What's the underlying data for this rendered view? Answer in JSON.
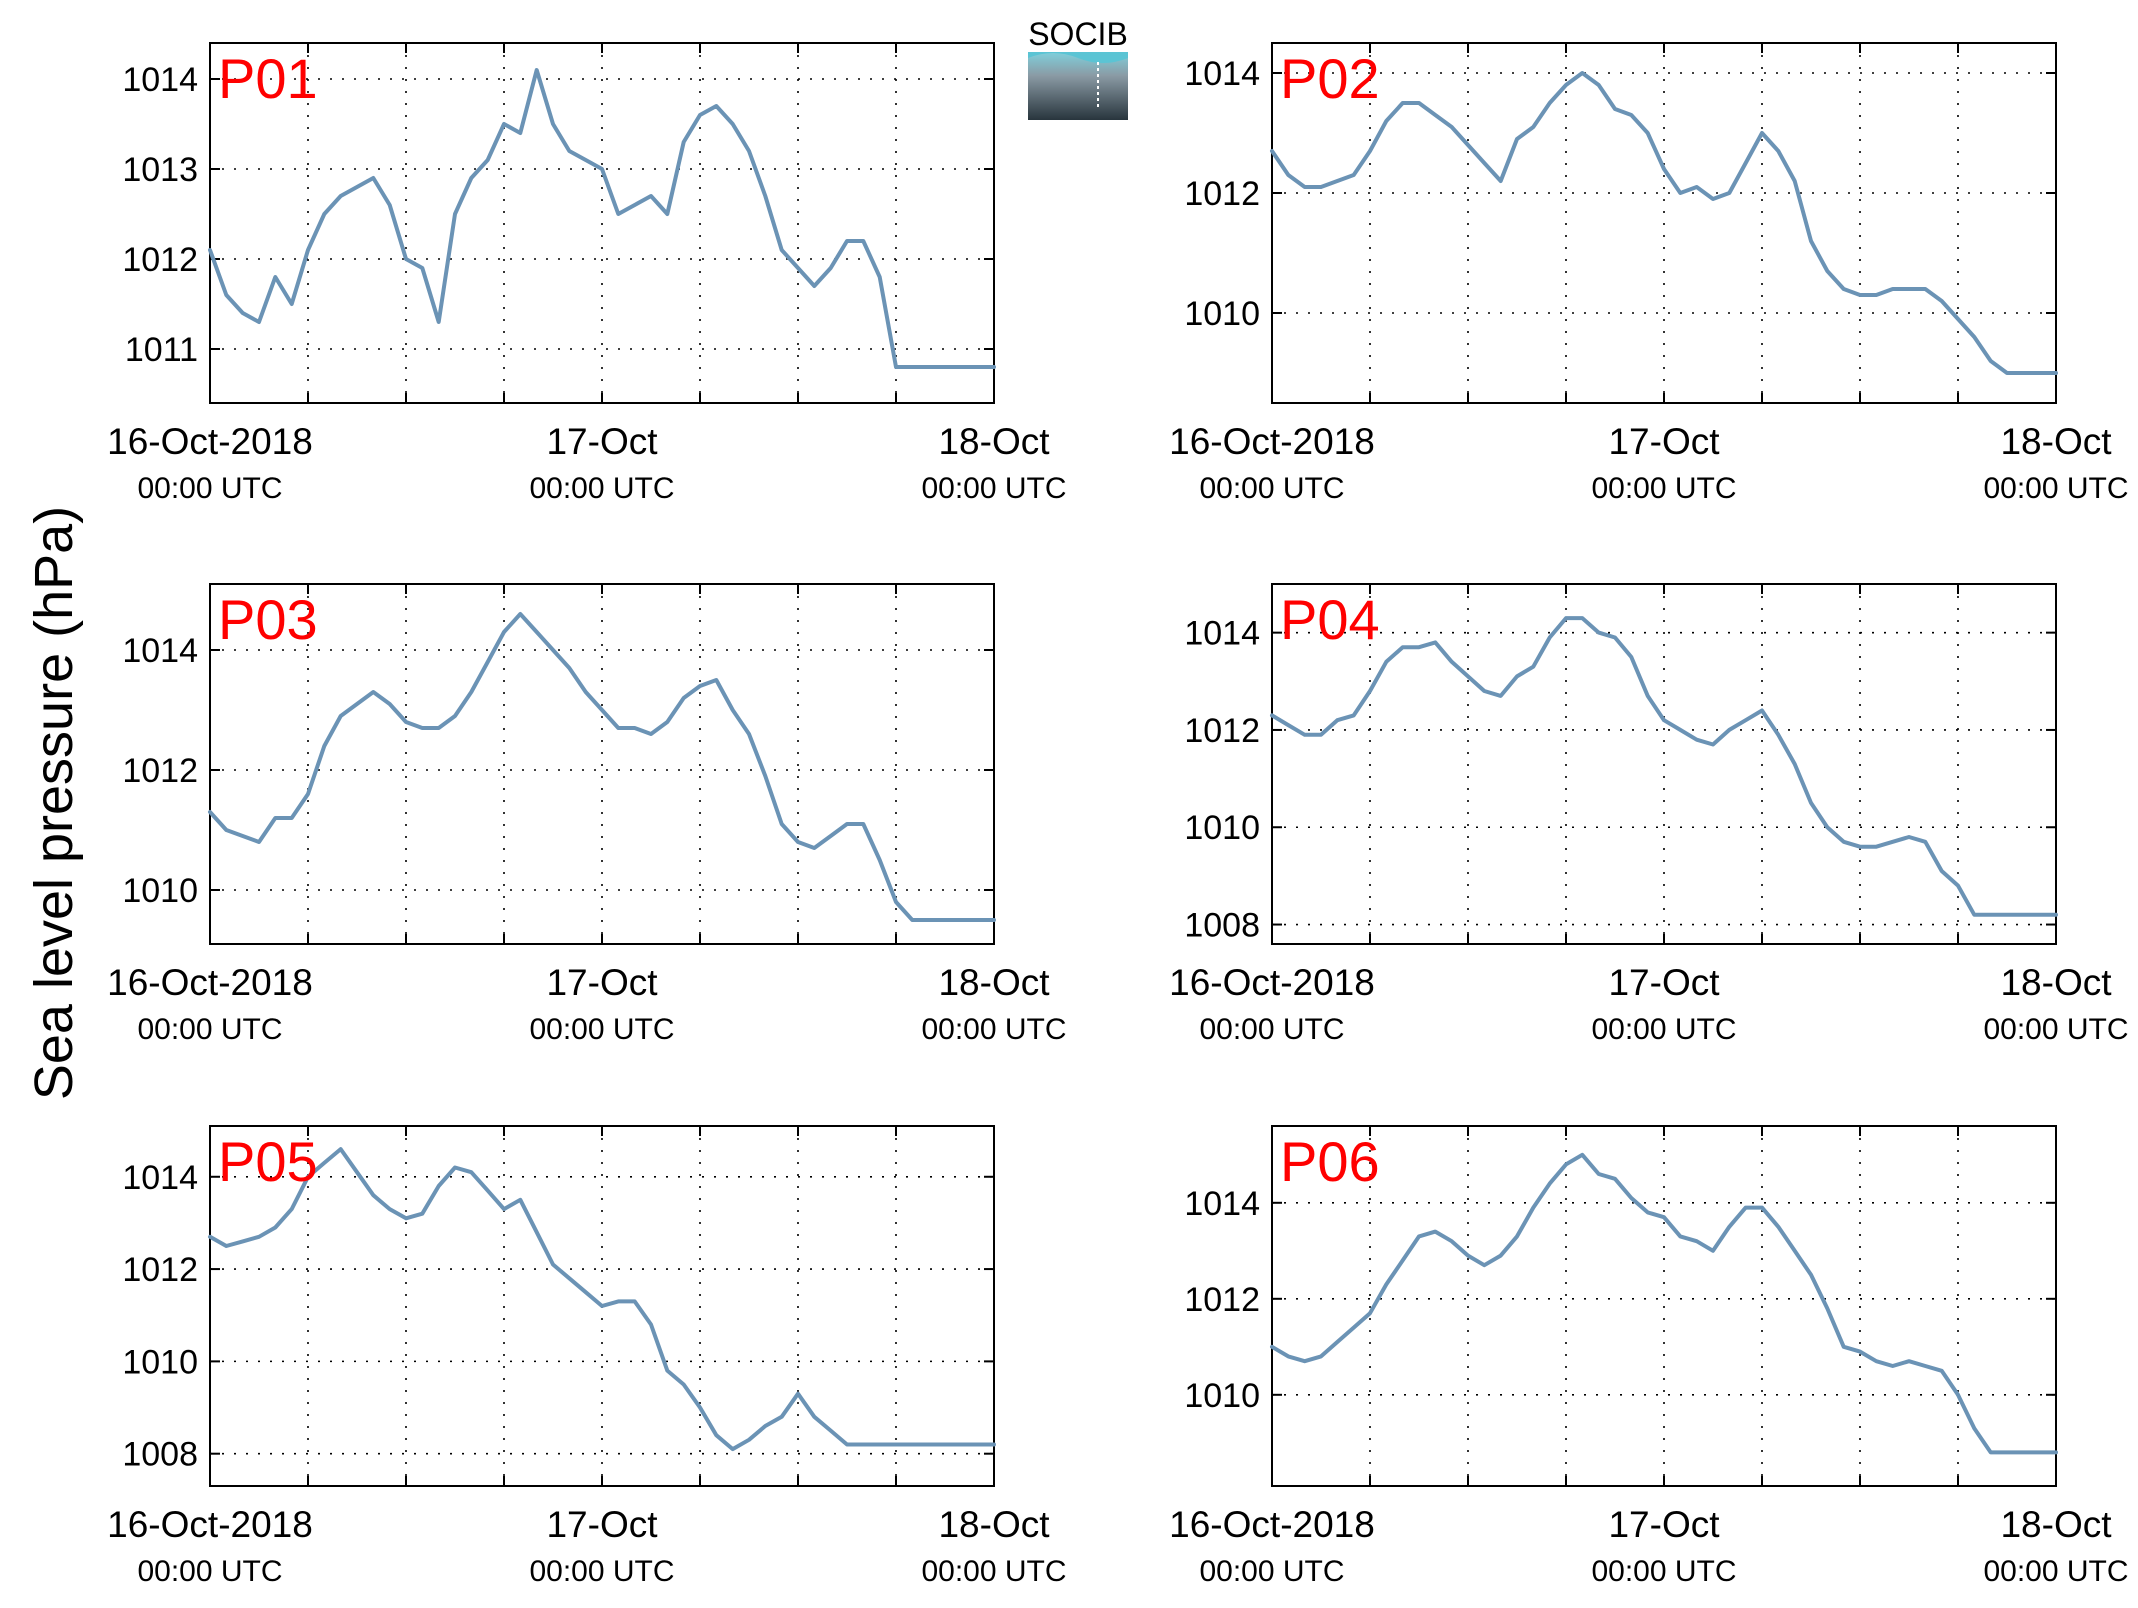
{
  "ylabel": "Sea level pressure (hPa)",
  "logo": {
    "text": "SOCIB",
    "text_color": "#5bc4d4"
  },
  "colors": {
    "line": "#6b93b5",
    "panel_label": "#ff0000",
    "grid": "#000000"
  },
  "x_ticks": [
    {
      "value": "2018-10-16T00:00Z",
      "line1": "16-Oct-2018",
      "line2": "00:00 UTC"
    },
    {
      "value": "2018-10-17T00:00Z",
      "line1": "17-Oct",
      "line2": "00:00 UTC"
    },
    {
      "value": "2018-10-18T00:00Z",
      "line1": "18-Oct",
      "line2": "00:00 UTC"
    }
  ],
  "chart_data": [
    {
      "type": "line",
      "label": "P01",
      "xlim": [
        "2018-10-16T00:00Z",
        "2018-10-18T00:00Z"
      ],
      "ylim": [
        1010.4,
        1014.4
      ],
      "yticks": [
        1011,
        1012,
        1013,
        1014
      ],
      "grid": "dotted",
      "x": [
        "2018-10-16T00:00Z",
        "2018-10-16T01:00Z",
        "2018-10-16T02:00Z",
        "2018-10-16T03:00Z",
        "2018-10-16T04:00Z",
        "2018-10-16T05:00Z",
        "2018-10-16T06:00Z",
        "2018-10-16T07:00Z",
        "2018-10-16T08:00Z",
        "2018-10-16T09:00Z",
        "2018-10-16T10:00Z",
        "2018-10-16T11:00Z",
        "2018-10-16T12:00Z",
        "2018-10-16T13:00Z",
        "2018-10-16T14:00Z",
        "2018-10-16T15:00Z",
        "2018-10-16T16:00Z",
        "2018-10-16T17:00Z",
        "2018-10-16T18:00Z",
        "2018-10-16T19:00Z",
        "2018-10-16T20:00Z",
        "2018-10-16T21:00Z",
        "2018-10-16T22:00Z",
        "2018-10-16T23:00Z",
        "2018-10-17T00:00Z",
        "2018-10-17T01:00Z",
        "2018-10-17T02:00Z",
        "2018-10-17T03:00Z",
        "2018-10-17T04:00Z",
        "2018-10-17T05:00Z",
        "2018-10-17T06:00Z",
        "2018-10-17T07:00Z",
        "2018-10-17T08:00Z",
        "2018-10-17T09:00Z",
        "2018-10-17T10:00Z",
        "2018-10-17T11:00Z",
        "2018-10-17T12:00Z",
        "2018-10-17T13:00Z",
        "2018-10-17T14:00Z",
        "2018-10-17T15:00Z",
        "2018-10-17T16:00Z",
        "2018-10-17T17:00Z",
        "2018-10-17T18:00Z",
        "2018-10-17T19:00Z",
        "2018-10-17T20:00Z",
        "2018-10-17T21:00Z",
        "2018-10-17T22:00Z",
        "2018-10-17T23:00Z",
        "2018-10-18T00:00Z"
      ],
      "y": [
        1012.1,
        1011.6,
        1011.4,
        1011.3,
        1011.8,
        1011.5,
        1012.1,
        1012.5,
        1012.7,
        1012.8,
        1012.9,
        1012.6,
        1012.0,
        1011.9,
        1011.3,
        1012.5,
        1012.9,
        1013.1,
        1013.5,
        1013.4,
        1014.1,
        1013.5,
        1013.2,
        1013.1,
        1013.0,
        1012.5,
        1012.6,
        1012.7,
        1012.5,
        1013.3,
        1013.6,
        1013.7,
        1013.5,
        1013.2,
        1012.7,
        1012.1,
        1011.9,
        1011.7,
        1011.9,
        1012.2,
        1012.2,
        1011.8,
        1010.8,
        1010.8,
        1010.8,
        1010.8,
        1010.8,
        1010.8,
        1010.8
      ]
    },
    {
      "type": "line",
      "label": "P02",
      "xlim": [
        "2018-10-16T00:00Z",
        "2018-10-18T00:00Z"
      ],
      "ylim": [
        1008.5,
        1014.5
      ],
      "yticks": [
        1010,
        1012,
        1014
      ],
      "grid": "dotted",
      "x": [
        "2018-10-16T00:00Z",
        "2018-10-16T01:00Z",
        "2018-10-16T02:00Z",
        "2018-10-16T03:00Z",
        "2018-10-16T04:00Z",
        "2018-10-16T05:00Z",
        "2018-10-16T06:00Z",
        "2018-10-16T07:00Z",
        "2018-10-16T08:00Z",
        "2018-10-16T09:00Z",
        "2018-10-16T10:00Z",
        "2018-10-16T11:00Z",
        "2018-10-16T12:00Z",
        "2018-10-16T13:00Z",
        "2018-10-16T14:00Z",
        "2018-10-16T15:00Z",
        "2018-10-16T16:00Z",
        "2018-10-16T17:00Z",
        "2018-10-16T18:00Z",
        "2018-10-16T19:00Z",
        "2018-10-16T20:00Z",
        "2018-10-16T21:00Z",
        "2018-10-16T22:00Z",
        "2018-10-16T23:00Z",
        "2018-10-17T00:00Z",
        "2018-10-17T01:00Z",
        "2018-10-17T02:00Z",
        "2018-10-17T03:00Z",
        "2018-10-17T04:00Z",
        "2018-10-17T05:00Z",
        "2018-10-17T06:00Z",
        "2018-10-17T07:00Z",
        "2018-10-17T08:00Z",
        "2018-10-17T09:00Z",
        "2018-10-17T10:00Z",
        "2018-10-17T11:00Z",
        "2018-10-17T12:00Z",
        "2018-10-17T13:00Z",
        "2018-10-17T14:00Z",
        "2018-10-17T15:00Z",
        "2018-10-17T16:00Z",
        "2018-10-17T17:00Z",
        "2018-10-17T18:00Z",
        "2018-10-17T19:00Z",
        "2018-10-17T20:00Z",
        "2018-10-17T21:00Z",
        "2018-10-17T22:00Z",
        "2018-10-17T23:00Z",
        "2018-10-18T00:00Z"
      ],
      "y": [
        1012.7,
        1012.3,
        1012.1,
        1012.1,
        1012.2,
        1012.3,
        1012.7,
        1013.2,
        1013.5,
        1013.5,
        1013.3,
        1013.1,
        1012.8,
        1012.5,
        1012.2,
        1012.9,
        1013.1,
        1013.5,
        1013.8,
        1014.0,
        1013.8,
        1013.4,
        1013.3,
        1013.0,
        1012.4,
        1012.0,
        1012.1,
        1011.9,
        1012.0,
        1012.5,
        1013.0,
        1012.7,
        1012.2,
        1011.2,
        1010.7,
        1010.4,
        1010.3,
        1010.3,
        1010.4,
        1010.4,
        1010.4,
        1010.2,
        1009.9,
        1009.6,
        1009.2,
        1009.0,
        1009.0,
        1009.0,
        1009.0
      ]
    },
    {
      "type": "line",
      "label": "P03",
      "xlim": [
        "2018-10-16T00:00Z",
        "2018-10-18T00:00Z"
      ],
      "ylim": [
        1009.1,
        1015.1
      ],
      "yticks": [
        1010,
        1012,
        1014
      ],
      "grid": "dotted",
      "x": [
        "2018-10-16T00:00Z",
        "2018-10-16T01:00Z",
        "2018-10-16T02:00Z",
        "2018-10-16T03:00Z",
        "2018-10-16T04:00Z",
        "2018-10-16T05:00Z",
        "2018-10-16T06:00Z",
        "2018-10-16T07:00Z",
        "2018-10-16T08:00Z",
        "2018-10-16T09:00Z",
        "2018-10-16T10:00Z",
        "2018-10-16T11:00Z",
        "2018-10-16T12:00Z",
        "2018-10-16T13:00Z",
        "2018-10-16T14:00Z",
        "2018-10-16T15:00Z",
        "2018-10-16T16:00Z",
        "2018-10-16T17:00Z",
        "2018-10-16T18:00Z",
        "2018-10-16T19:00Z",
        "2018-10-16T20:00Z",
        "2018-10-16T21:00Z",
        "2018-10-16T22:00Z",
        "2018-10-16T23:00Z",
        "2018-10-17T00:00Z",
        "2018-10-17T01:00Z",
        "2018-10-17T02:00Z",
        "2018-10-17T03:00Z",
        "2018-10-17T04:00Z",
        "2018-10-17T05:00Z",
        "2018-10-17T06:00Z",
        "2018-10-17T07:00Z",
        "2018-10-17T08:00Z",
        "2018-10-17T09:00Z",
        "2018-10-17T10:00Z",
        "2018-10-17T11:00Z",
        "2018-10-17T12:00Z",
        "2018-10-17T13:00Z",
        "2018-10-17T14:00Z",
        "2018-10-17T15:00Z",
        "2018-10-17T16:00Z",
        "2018-10-17T17:00Z",
        "2018-10-17T18:00Z",
        "2018-10-17T19:00Z",
        "2018-10-17T20:00Z",
        "2018-10-17T21:00Z",
        "2018-10-17T22:00Z",
        "2018-10-17T23:00Z",
        "2018-10-18T00:00Z"
      ],
      "y": [
        1011.3,
        1011.0,
        1010.9,
        1010.8,
        1011.2,
        1011.2,
        1011.6,
        1012.4,
        1012.9,
        1013.1,
        1013.3,
        1013.1,
        1012.8,
        1012.7,
        1012.7,
        1012.9,
        1013.3,
        1013.8,
        1014.3,
        1014.6,
        1014.3,
        1014.0,
        1013.7,
        1013.3,
        1013.0,
        1012.7,
        1012.7,
        1012.6,
        1012.8,
        1013.2,
        1013.4,
        1013.5,
        1013.0,
        1012.6,
        1011.9,
        1011.1,
        1010.8,
        1010.7,
        1010.9,
        1011.1,
        1011.1,
        1010.5,
        1009.8,
        1009.5,
        1009.5,
        1009.5,
        1009.5,
        1009.5,
        1009.5
      ]
    },
    {
      "type": "line",
      "label": "P04",
      "xlim": [
        "2018-10-16T00:00Z",
        "2018-10-18T00:00Z"
      ],
      "ylim": [
        1007.6,
        1015.0
      ],
      "yticks": [
        1008,
        1010,
        1012,
        1014
      ],
      "grid": "dotted",
      "x": [
        "2018-10-16T00:00Z",
        "2018-10-16T01:00Z",
        "2018-10-16T02:00Z",
        "2018-10-16T03:00Z",
        "2018-10-16T04:00Z",
        "2018-10-16T05:00Z",
        "2018-10-16T06:00Z",
        "2018-10-16T07:00Z",
        "2018-10-16T08:00Z",
        "2018-10-16T09:00Z",
        "2018-10-16T10:00Z",
        "2018-10-16T11:00Z",
        "2018-10-16T12:00Z",
        "2018-10-16T13:00Z",
        "2018-10-16T14:00Z",
        "2018-10-16T15:00Z",
        "2018-10-16T16:00Z",
        "2018-10-16T17:00Z",
        "2018-10-16T18:00Z",
        "2018-10-16T19:00Z",
        "2018-10-16T20:00Z",
        "2018-10-16T21:00Z",
        "2018-10-16T22:00Z",
        "2018-10-16T23:00Z",
        "2018-10-17T00:00Z",
        "2018-10-17T01:00Z",
        "2018-10-17T02:00Z",
        "2018-10-17T03:00Z",
        "2018-10-17T04:00Z",
        "2018-10-17T05:00Z",
        "2018-10-17T06:00Z",
        "2018-10-17T07:00Z",
        "2018-10-17T08:00Z",
        "2018-10-17T09:00Z",
        "2018-10-17T10:00Z",
        "2018-10-17T11:00Z",
        "2018-10-17T12:00Z",
        "2018-10-17T13:00Z",
        "2018-10-17T14:00Z",
        "2018-10-17T15:00Z",
        "2018-10-17T16:00Z",
        "2018-10-17T17:00Z",
        "2018-10-17T18:00Z",
        "2018-10-17T19:00Z",
        "2018-10-17T20:00Z",
        "2018-10-17T21:00Z",
        "2018-10-17T22:00Z",
        "2018-10-17T23:00Z",
        "2018-10-18T00:00Z"
      ],
      "y": [
        1012.3,
        1012.1,
        1011.9,
        1011.9,
        1012.2,
        1012.3,
        1012.8,
        1013.4,
        1013.7,
        1013.7,
        1013.8,
        1013.4,
        1013.1,
        1012.8,
        1012.7,
        1013.1,
        1013.3,
        1013.9,
        1014.3,
        1014.3,
        1014.0,
        1013.9,
        1013.5,
        1012.7,
        1012.2,
        1012.0,
        1011.8,
        1011.7,
        1012.0,
        1012.2,
        1012.4,
        1011.9,
        1011.3,
        1010.5,
        1010.0,
        1009.7,
        1009.6,
        1009.6,
        1009.7,
        1009.8,
        1009.7,
        1009.1,
        1008.8,
        1008.2,
        1008.2,
        1008.2,
        1008.2,
        1008.2,
        1008.2
      ]
    },
    {
      "type": "line",
      "label": "P05",
      "xlim": [
        "2018-10-16T00:00Z",
        "2018-10-18T00:00Z"
      ],
      "ylim": [
        1007.3,
        1015.1
      ],
      "yticks": [
        1008,
        1010,
        1012,
        1014
      ],
      "grid": "dotted",
      "x": [
        "2018-10-16T00:00Z",
        "2018-10-16T01:00Z",
        "2018-10-16T02:00Z",
        "2018-10-16T03:00Z",
        "2018-10-16T04:00Z",
        "2018-10-16T05:00Z",
        "2018-10-16T06:00Z",
        "2018-10-16T07:00Z",
        "2018-10-16T08:00Z",
        "2018-10-16T09:00Z",
        "2018-10-16T10:00Z",
        "2018-10-16T11:00Z",
        "2018-10-16T12:00Z",
        "2018-10-16T13:00Z",
        "2018-10-16T14:00Z",
        "2018-10-16T15:00Z",
        "2018-10-16T16:00Z",
        "2018-10-16T17:00Z",
        "2018-10-16T18:00Z",
        "2018-10-16T19:00Z",
        "2018-10-16T20:00Z",
        "2018-10-16T21:00Z",
        "2018-10-16T22:00Z",
        "2018-10-16T23:00Z",
        "2018-10-17T00:00Z",
        "2018-10-17T01:00Z",
        "2018-10-17T02:00Z",
        "2018-10-17T03:00Z",
        "2018-10-17T04:00Z",
        "2018-10-17T05:00Z",
        "2018-10-17T06:00Z",
        "2018-10-17T07:00Z",
        "2018-10-17T08:00Z",
        "2018-10-17T09:00Z",
        "2018-10-17T10:00Z",
        "2018-10-17T11:00Z",
        "2018-10-17T12:00Z",
        "2018-10-17T13:00Z",
        "2018-10-17T14:00Z",
        "2018-10-17T15:00Z",
        "2018-10-17T16:00Z",
        "2018-10-17T17:00Z",
        "2018-10-17T18:00Z",
        "2018-10-17T19:00Z",
        "2018-10-17T20:00Z",
        "2018-10-17T21:00Z",
        "2018-10-17T22:00Z",
        "2018-10-17T23:00Z",
        "2018-10-18T00:00Z"
      ],
      "y": [
        1012.7,
        1012.5,
        1012.6,
        1012.7,
        1012.9,
        1013.3,
        1014.0,
        1014.3,
        1014.6,
        1014.1,
        1013.6,
        1013.3,
        1013.1,
        1013.2,
        1013.8,
        1014.2,
        1014.1,
        1013.7,
        1013.3,
        1013.5,
        1012.8,
        1012.1,
        1011.8,
        1011.5,
        1011.2,
        1011.3,
        1011.3,
        1010.8,
        1009.8,
        1009.5,
        1009.0,
        1008.4,
        1008.1,
        1008.3,
        1008.6,
        1008.8,
        1009.3,
        1008.8,
        1008.5,
        1008.2,
        1008.2,
        1008.2,
        1008.2,
        1008.2,
        1008.2,
        1008.2,
        1008.2,
        1008.2,
        1008.2
      ]
    },
    {
      "type": "line",
      "label": "P06",
      "xlim": [
        "2018-10-16T00:00Z",
        "2018-10-18T00:00Z"
      ],
      "ylim": [
        1008.1,
        1015.6
      ],
      "yticks": [
        1010,
        1012,
        1014
      ],
      "grid": "dotted",
      "x": [
        "2018-10-16T00:00Z",
        "2018-10-16T01:00Z",
        "2018-10-16T02:00Z",
        "2018-10-16T03:00Z",
        "2018-10-16T04:00Z",
        "2018-10-16T05:00Z",
        "2018-10-16T06:00Z",
        "2018-10-16T07:00Z",
        "2018-10-16T08:00Z",
        "2018-10-16T09:00Z",
        "2018-10-16T10:00Z",
        "2018-10-16T11:00Z",
        "2018-10-16T12:00Z",
        "2018-10-16T13:00Z",
        "2018-10-16T14:00Z",
        "2018-10-16T15:00Z",
        "2018-10-16T16:00Z",
        "2018-10-16T17:00Z",
        "2018-10-16T18:00Z",
        "2018-10-16T19:00Z",
        "2018-10-16T20:00Z",
        "2018-10-16T21:00Z",
        "2018-10-16T22:00Z",
        "2018-10-16T23:00Z",
        "2018-10-17T00:00Z",
        "2018-10-17T01:00Z",
        "2018-10-17T02:00Z",
        "2018-10-17T03:00Z",
        "2018-10-17T04:00Z",
        "2018-10-17T05:00Z",
        "2018-10-17T06:00Z",
        "2018-10-17T07:00Z",
        "2018-10-17T08:00Z",
        "2018-10-17T09:00Z",
        "2018-10-17T10:00Z",
        "2018-10-17T11:00Z",
        "2018-10-17T12:00Z",
        "2018-10-17T13:00Z",
        "2018-10-17T14:00Z",
        "2018-10-17T15:00Z",
        "2018-10-17T16:00Z",
        "2018-10-17T17:00Z",
        "2018-10-17T18:00Z",
        "2018-10-17T19:00Z",
        "2018-10-17T20:00Z",
        "2018-10-17T21:00Z",
        "2018-10-17T22:00Z",
        "2018-10-17T23:00Z",
        "2018-10-18T00:00Z"
      ],
      "y": [
        1011.0,
        1010.8,
        1010.7,
        1010.8,
        1011.1,
        1011.4,
        1011.7,
        1012.3,
        1012.8,
        1013.3,
        1013.4,
        1013.2,
        1012.9,
        1012.7,
        1012.9,
        1013.3,
        1013.9,
        1014.4,
        1014.8,
        1015.0,
        1014.6,
        1014.5,
        1014.1,
        1013.8,
        1013.7,
        1013.3,
        1013.2,
        1013.0,
        1013.5,
        1013.9,
        1013.9,
        1013.5,
        1013.0,
        1012.5,
        1011.8,
        1011.0,
        1010.9,
        1010.7,
        1010.6,
        1010.7,
        1010.6,
        1010.5,
        1010.0,
        1009.3,
        1008.8,
        1008.8,
        1008.8,
        1008.8,
        1008.8
      ]
    }
  ]
}
